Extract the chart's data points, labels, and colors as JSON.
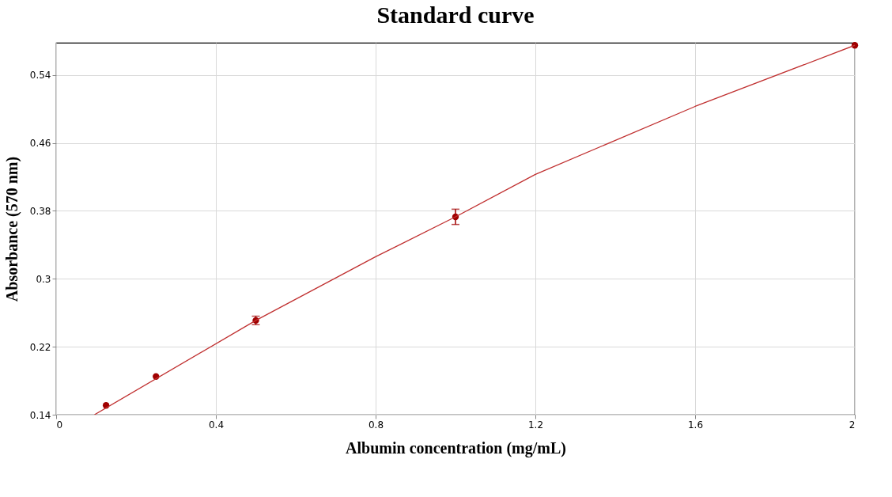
{
  "chart_data": {
    "type": "scatter",
    "title": "Standard curve",
    "xlabel": "Albumin concentration (mg/mL)",
    "ylabel": "Absorbance (570 nm)",
    "xlim": [
      0,
      2
    ],
    "ylim": [
      0.14,
      0.578
    ],
    "xticks": [
      0,
      0.4,
      0.8,
      1.2,
      1.6,
      2
    ],
    "yticks": [
      0.14,
      0.22,
      0.3,
      0.38,
      0.46,
      0.54
    ],
    "grid": true,
    "marker": "circle",
    "series": [
      {
        "color": "#a00000",
        "x": [
          0.125,
          0.25,
          0.5,
          1,
          2
        ],
        "values": [
          0.151,
          0.185,
          0.251,
          0.373,
          0.575
        ],
        "errors": [
          null,
          null,
          0.005,
          0.009,
          null
        ]
      },
      {
        "type": "line",
        "color": "#c03030",
        "line_style": "solid",
        "marker": "none",
        "x": [
          0.096,
          0.5,
          0.8,
          1,
          1.2,
          1.6,
          2
        ],
        "values": [
          0.14,
          0.251,
          0.326,
          0.373,
          0.423,
          0.503,
          0.575
        ]
      }
    ]
  }
}
